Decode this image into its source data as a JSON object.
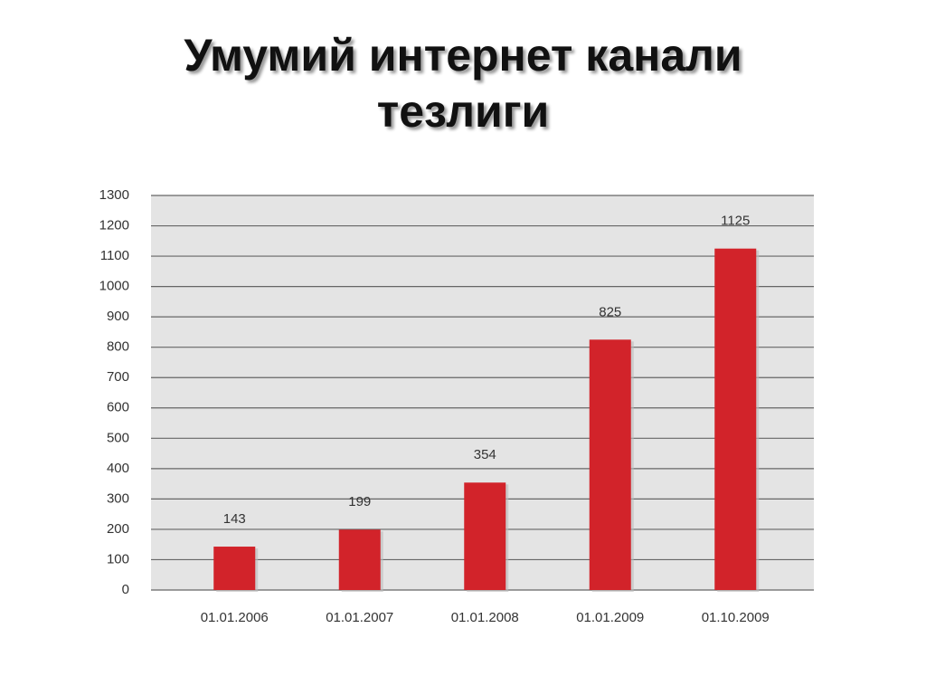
{
  "chart_data": {
    "type": "bar",
    "title": "Умумий интернет канали тезлиги",
    "categories": [
      "01.01.2006",
      "01.01.2007",
      "01.01.2008",
      "01.01.2009",
      "01.10.2009"
    ],
    "values": [
      143,
      199,
      354,
      825,
      1125
    ],
    "color": "#d2232a",
    "ylim": [
      0,
      1300
    ],
    "yticks": [
      0,
      100,
      200,
      300,
      400,
      500,
      600,
      700,
      800,
      900,
      1000,
      1100,
      1200,
      1300
    ],
    "grid": true
  }
}
